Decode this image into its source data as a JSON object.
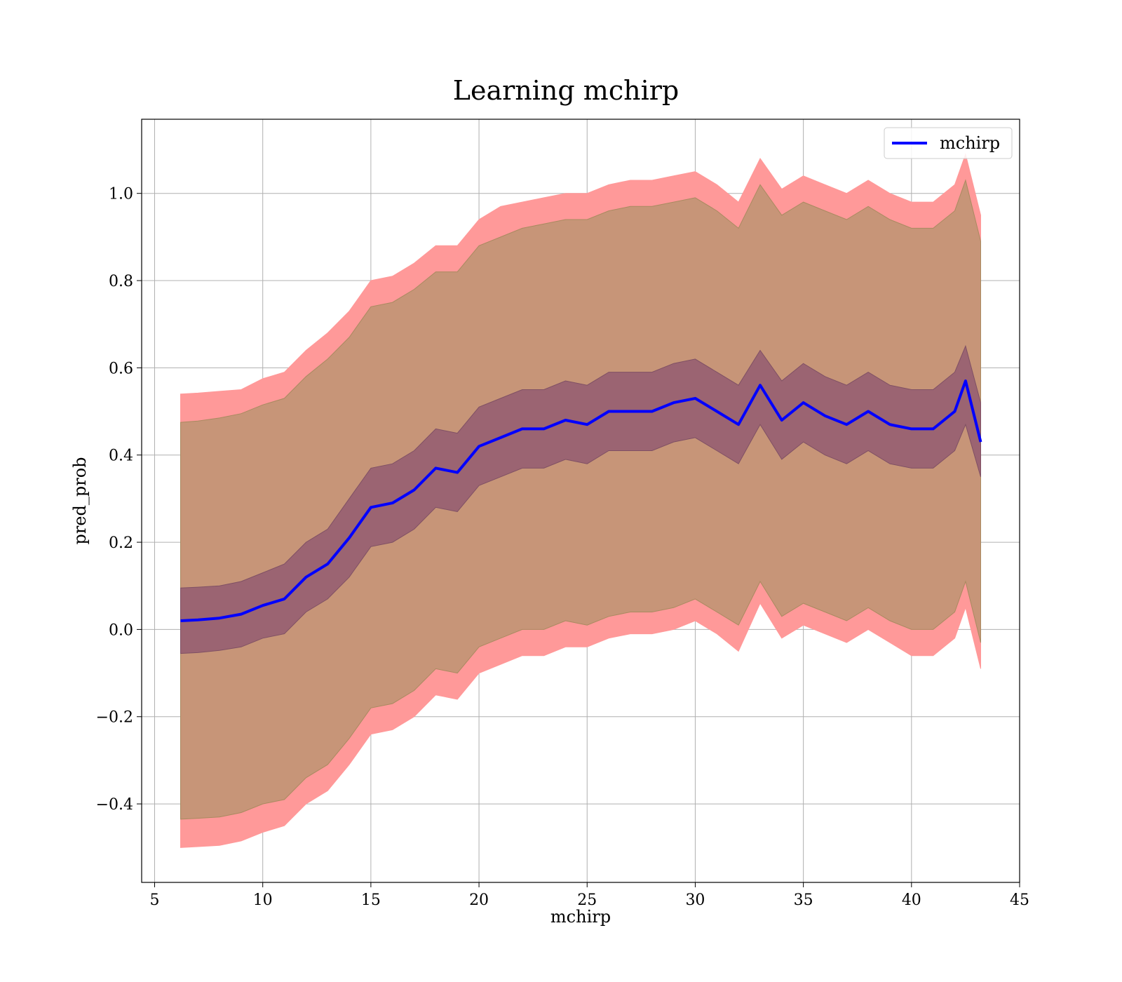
{
  "chart_data": {
    "type": "line",
    "title": "Learning mchirp",
    "xlabel": "mchirp",
    "ylabel": "pred_prob",
    "xlim": [
      4.4,
      45
    ],
    "ylim": [
      -0.58,
      1.17
    ],
    "xticks": [
      5,
      10,
      15,
      20,
      25,
      30,
      35,
      40,
      45
    ],
    "xtick_labels": [
      "5",
      "10",
      "15",
      "20",
      "25",
      "30",
      "35",
      "40",
      "45"
    ],
    "yticks": [
      -0.4,
      -0.2,
      0.0,
      0.2,
      0.4,
      0.6,
      0.8,
      1.0
    ],
    "ytick_labels": [
      "−0.4",
      "−0.2",
      "0.0",
      "0.2",
      "0.4",
      "0.6",
      "0.8",
      "1.0"
    ],
    "grid": true,
    "legend_position": "top-right",
    "colors": {
      "line": "#0000ff",
      "outer_band": "#ff9999",
      "middle_band": "#c79578",
      "inner_band": "#9b6472"
    },
    "x": [
      6.2,
      7.0,
      8.0,
      9.0,
      10.0,
      11.0,
      12.0,
      13.0,
      14.0,
      15.0,
      16.0,
      17.0,
      18.0,
      19.0,
      20.0,
      21.0,
      22.0,
      23.0,
      24.0,
      25.0,
      26.0,
      27.0,
      28.0,
      29.0,
      30.0,
      31.0,
      32.0,
      33.0,
      34.0,
      35.0,
      36.0,
      37.0,
      38.0,
      39.0,
      40.0,
      41.0,
      42.0,
      42.5,
      43.2
    ],
    "series": [
      {
        "name": "mchirp",
        "values": [
          0.02,
          0.022,
          0.026,
          0.035,
          0.055,
          0.07,
          0.12,
          0.15,
          0.21,
          0.28,
          0.29,
          0.32,
          0.37,
          0.36,
          0.42,
          0.44,
          0.46,
          0.46,
          0.48,
          0.47,
          0.5,
          0.5,
          0.5,
          0.52,
          0.53,
          0.5,
          0.47,
          0.56,
          0.48,
          0.52,
          0.49,
          0.47,
          0.5,
          0.47,
          0.46,
          0.46,
          0.5,
          0.57,
          0.43
        ]
      }
    ],
    "bands": {
      "outer_upper": [
        0.54,
        0.542,
        0.546,
        0.55,
        0.575,
        0.59,
        0.64,
        0.68,
        0.73,
        0.8,
        0.81,
        0.84,
        0.88,
        0.88,
        0.94,
        0.97,
        0.98,
        0.99,
        1.0,
        1.0,
        1.02,
        1.03,
        1.03,
        1.04,
        1.05,
        1.02,
        0.98,
        1.08,
        1.01,
        1.04,
        1.02,
        1.0,
        1.03,
        1.0,
        0.98,
        0.98,
        1.02,
        1.09,
        0.95
      ],
      "middle_upper": [
        0.475,
        0.478,
        0.485,
        0.495,
        0.515,
        0.53,
        0.58,
        0.62,
        0.67,
        0.74,
        0.75,
        0.78,
        0.82,
        0.82,
        0.88,
        0.9,
        0.92,
        0.93,
        0.94,
        0.94,
        0.96,
        0.97,
        0.97,
        0.98,
        0.99,
        0.96,
        0.92,
        1.02,
        0.95,
        0.98,
        0.96,
        0.94,
        0.97,
        0.94,
        0.92,
        0.92,
        0.96,
        1.03,
        0.89
      ],
      "inner_upper": [
        0.095,
        0.097,
        0.1,
        0.11,
        0.13,
        0.15,
        0.2,
        0.23,
        0.3,
        0.37,
        0.38,
        0.41,
        0.46,
        0.45,
        0.51,
        0.53,
        0.55,
        0.55,
        0.57,
        0.56,
        0.59,
        0.59,
        0.59,
        0.61,
        0.62,
        0.59,
        0.56,
        0.64,
        0.57,
        0.61,
        0.58,
        0.56,
        0.59,
        0.56,
        0.55,
        0.55,
        0.59,
        0.65,
        0.52
      ],
      "inner_lower": [
        -0.055,
        -0.053,
        -0.048,
        -0.04,
        -0.02,
        -0.01,
        0.04,
        0.07,
        0.12,
        0.19,
        0.2,
        0.23,
        0.28,
        0.27,
        0.33,
        0.35,
        0.37,
        0.37,
        0.39,
        0.38,
        0.41,
        0.41,
        0.41,
        0.43,
        0.44,
        0.41,
        0.38,
        0.47,
        0.39,
        0.43,
        0.4,
        0.38,
        0.41,
        0.38,
        0.37,
        0.37,
        0.41,
        0.47,
        0.35
      ],
      "middle_lower": [
        -0.435,
        -0.433,
        -0.43,
        -0.42,
        -0.4,
        -0.39,
        -0.34,
        -0.31,
        -0.25,
        -0.18,
        -0.17,
        -0.14,
        -0.09,
        -0.1,
        -0.04,
        -0.02,
        0.0,
        0.0,
        0.02,
        0.01,
        0.03,
        0.04,
        0.04,
        0.05,
        0.07,
        0.04,
        0.01,
        0.11,
        0.03,
        0.06,
        0.04,
        0.02,
        0.05,
        0.02,
        0.0,
        0.0,
        0.04,
        0.11,
        -0.03
      ],
      "outer_lower": [
        -0.5,
        -0.498,
        -0.495,
        -0.485,
        -0.465,
        -0.45,
        -0.4,
        -0.37,
        -0.31,
        -0.24,
        -0.23,
        -0.2,
        -0.15,
        -0.16,
        -0.1,
        -0.08,
        -0.06,
        -0.06,
        -0.04,
        -0.04,
        -0.02,
        -0.01,
        -0.01,
        0.0,
        0.02,
        -0.01,
        -0.05,
        0.06,
        -0.02,
        0.01,
        -0.01,
        -0.03,
        0.0,
        -0.03,
        -0.06,
        -0.06,
        -0.02,
        0.05,
        -0.09
      ]
    }
  }
}
